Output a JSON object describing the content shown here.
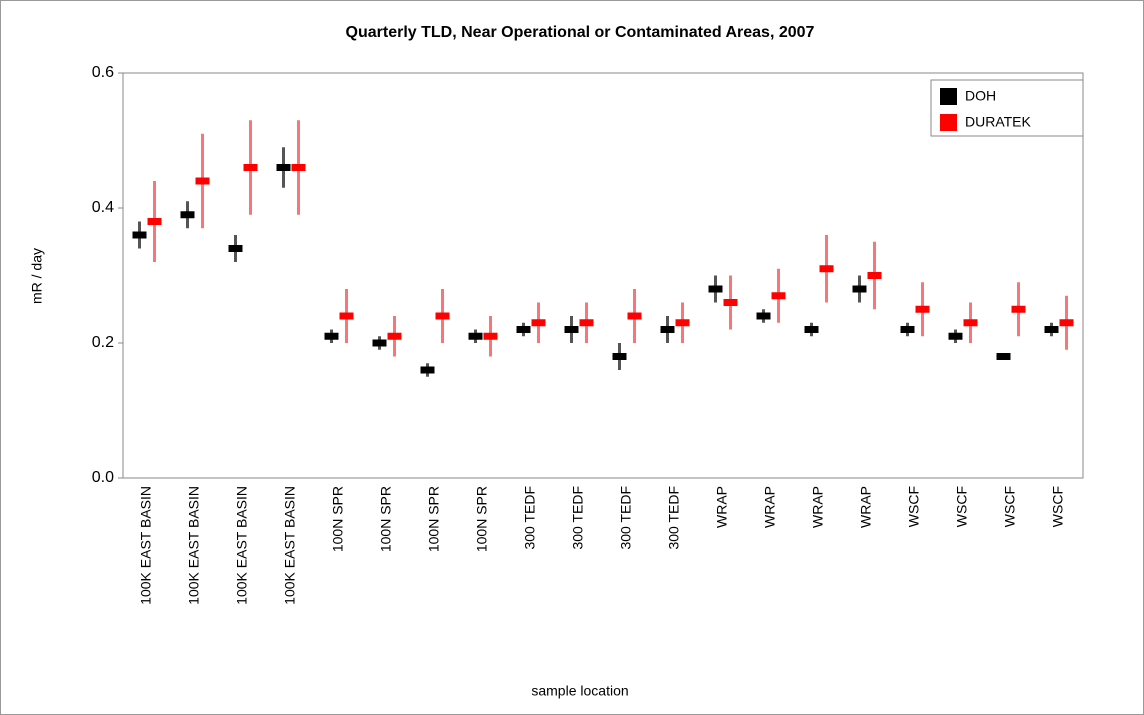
{
  "chart_data": {
    "type": "errorbar",
    "title": "Quarterly TLD, Near Operational or Contaminated Areas, 2007",
    "x_label": "sample location",
    "y_label": "mR / day",
    "categories": [
      "100K EAST BASIN",
      "100K EAST BASIN",
      "100K EAST BASIN",
      "100K EAST BASIN",
      "100N SPR",
      "100N SPR",
      "100N SPR",
      "100N SPR",
      "300 TEDF",
      "300 TEDF",
      "300 TEDF",
      "300 TEDF",
      "WRAP",
      "WRAP",
      "WRAP",
      "WRAP",
      "WSCF",
      "WSCF",
      "WSCF",
      "WSCF"
    ],
    "series": [
      {
        "name": "DOH",
        "color": "#000000",
        "error_color": "#555555",
        "values": [
          0.36,
          0.39,
          0.34,
          0.46,
          0.21,
          0.2,
          0.16,
          0.21,
          0.22,
          0.22,
          0.18,
          0.22,
          0.28,
          0.24,
          0.22,
          0.28,
          0.22,
          0.21,
          0.18,
          0.22
        ],
        "errors": [
          0.02,
          0.02,
          0.02,
          0.03,
          0.01,
          0.01,
          0.01,
          0.01,
          0.01,
          0.02,
          0.02,
          0.02,
          0.02,
          0.01,
          0.01,
          0.02,
          0.01,
          0.01,
          0.005,
          0.01
        ]
      },
      {
        "name": "DURATEK",
        "color": "#ff0000",
        "error_color": "#f77777",
        "values": [
          0.38,
          0.44,
          0.46,
          0.46,
          0.24,
          0.21,
          0.24,
          0.21,
          0.23,
          0.23,
          0.24,
          0.23,
          0.26,
          0.27,
          0.31,
          0.3,
          0.25,
          0.23,
          0.25,
          0.23
        ],
        "errors": [
          0.06,
          0.07,
          0.07,
          0.07,
          0.04,
          0.03,
          0.04,
          0.03,
          0.03,
          0.03,
          0.04,
          0.03,
          0.04,
          0.04,
          0.05,
          0.05,
          0.04,
          0.03,
          0.04,
          0.04
        ]
      }
    ],
    "ylim": [
      0,
      0.6
    ],
    "yticks": [
      {
        "value": 0,
        "label": "0.0"
      },
      0.2,
      0.4,
      0.6
    ],
    "legend": "top-right"
  }
}
